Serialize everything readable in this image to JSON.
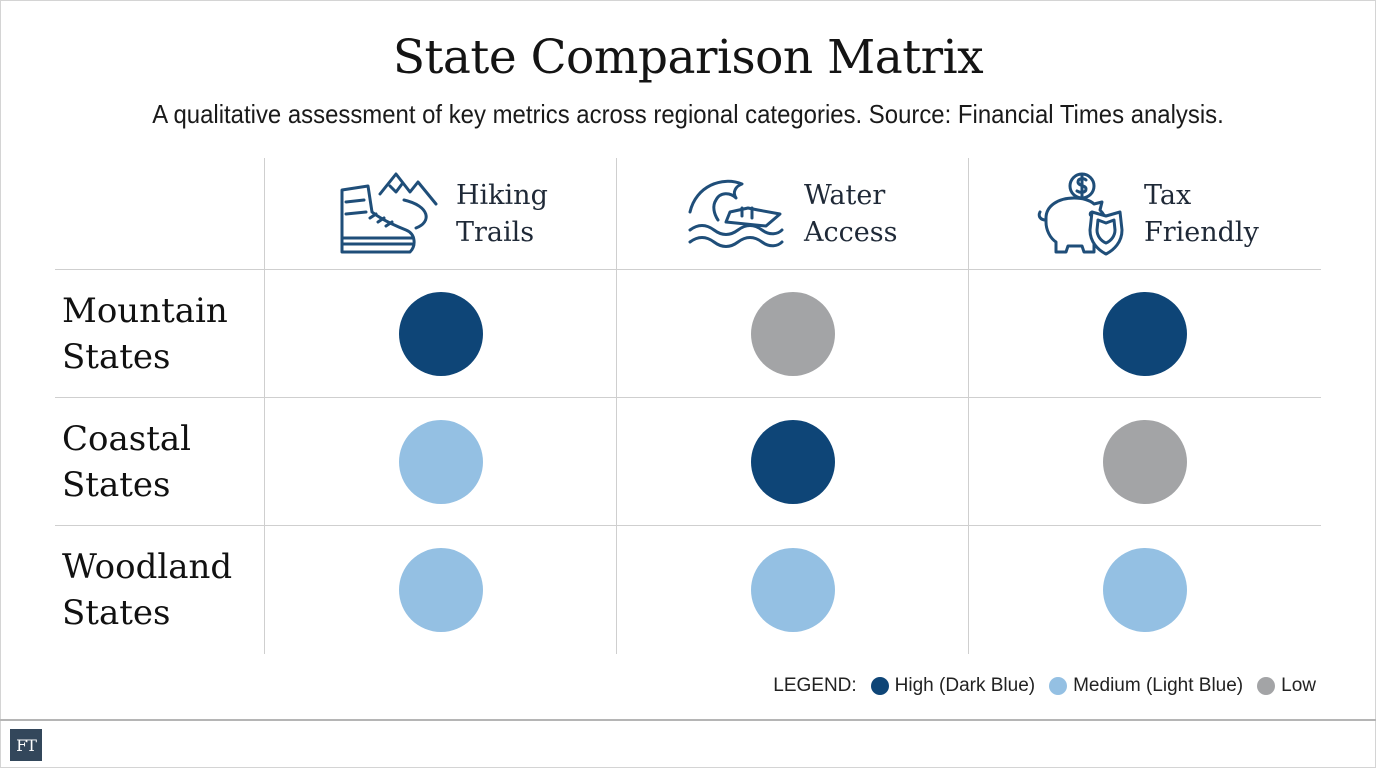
{
  "title": "State Comparison Matrix",
  "subtitle": "A qualitative assessment of key metrics across regional categories. Source: Financial Times analysis.",
  "logo_text": "FT",
  "colors": {
    "high": "#0e4577",
    "medium": "#94c0e3",
    "low": "#a3a4a6",
    "icon_stroke": "#1f4e79"
  },
  "columns": [
    {
      "line1": "Hiking",
      "line2": "Trails",
      "icon": "hiking-boot-mountain-icon"
    },
    {
      "line1": "Water",
      "line2": "Access",
      "icon": "wave-boat-icon"
    },
    {
      "line1": "Tax",
      "line2": "Friendly",
      "icon": "piggy-bank-shield-icon"
    }
  ],
  "rows": [
    {
      "line1": "Mountain",
      "line2": "States"
    },
    {
      "line1": "Coastal",
      "line2": "States"
    },
    {
      "line1": "Woodland",
      "line2": "States"
    }
  ],
  "chart_data": {
    "type": "heatmap",
    "title": "State Comparison Matrix",
    "categories_x": [
      "Hiking Trails",
      "Water Access",
      "Tax Friendly"
    ],
    "categories_y": [
      "Mountain States",
      "Coastal States",
      "Woodland States"
    ],
    "levels": [
      "High",
      "Medium",
      "Low"
    ],
    "values": [
      [
        "High",
        "Low",
        "High"
      ],
      [
        "Medium",
        "High",
        "Low"
      ],
      [
        "Medium",
        "Medium",
        "Medium"
      ]
    ]
  },
  "legend": {
    "prefix": "LEGEND:",
    "items": [
      {
        "label": "High (Dark Blue)",
        "level": "high"
      },
      {
        "label": "Medium (Light Blue)",
        "level": "medium"
      },
      {
        "label": "Low",
        "level": "low"
      }
    ]
  }
}
